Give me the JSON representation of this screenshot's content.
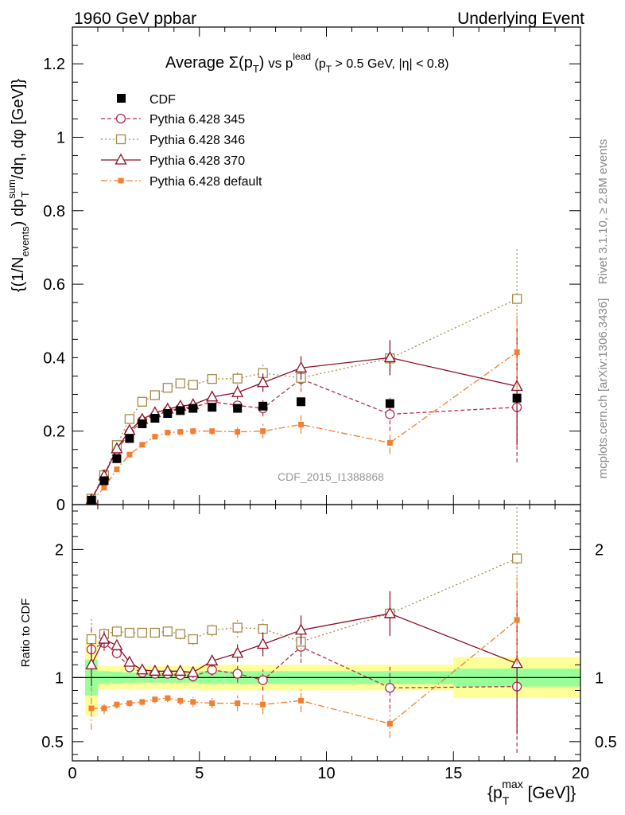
{
  "header": {
    "left": "1960 GeV ppbar",
    "right": "Underlying Event"
  },
  "side_labels": {
    "rivet": "Rivet 3.1.10, ≥ 2.8M events",
    "mcplots": "mcplots.cern.ch [arXiv:1306.3436]"
  },
  "watermark": "CDF_2015_I1388868",
  "legend": {
    "cdf": "CDF",
    "p345": "Pythia 6.428 345",
    "p346": "Pythia 6.428 346",
    "p370": "Pythia 6.428 370",
    "pdef": "Pythia 6.428 default"
  },
  "chart_data": {
    "type": "scatter",
    "title_main": "Average ",
    "title_sigma": "Σ(p",
    "title_sub_t": "T",
    "title_close": ")",
    "title_vs": " vs p",
    "title_lead": "lead",
    "title_rest": " (p",
    "title_rest2": " > 0.5 GeV, |η| < 0.8)",
    "xlabel_pre": "{p",
    "xlabel_sup": "max",
    "xlabel_sub": "T",
    "xlabel_post": " [GeV]}",
    "ylabel_main_a": "{(1/N",
    "ylabel_sub_events": "events",
    "ylabel_main_b": ") dp",
    "ylabel_sup_sum": "sum",
    "ylabel_sub_t": "T",
    "ylabel_main_c": "/dη, dφ [GeV]}",
    "ratio_ylabel": "Ratio to CDF",
    "xlim": [
      0,
      20
    ],
    "ylim_main": [
      0,
      1.3
    ],
    "ylim_ratio": [
      0.35,
      2.35
    ],
    "x_ticks": [
      {
        "v": 0,
        "label": "0"
      },
      {
        "v": 5,
        "label": "5"
      },
      {
        "v": 10,
        "label": "10"
      },
      {
        "v": 15,
        "label": "15"
      },
      {
        "v": 20,
        "label": "20"
      }
    ],
    "y_ticks_main": [
      {
        "v": 0,
        "label": "0"
      },
      {
        "v": 0.2,
        "label": "0.2"
      },
      {
        "v": 0.4,
        "label": "0.4"
      },
      {
        "v": 0.6,
        "label": "0.6"
      },
      {
        "v": 0.8,
        "label": "0.8"
      },
      {
        "v": 1,
        "label": "1"
      },
      {
        "v": 1.2,
        "label": "1.2"
      }
    ],
    "y_ticks_ratio": [
      {
        "v": 0.5,
        "label": "0.5"
      },
      {
        "v": 1,
        "label": "1"
      },
      {
        "v": 2,
        "label": "2"
      }
    ],
    "x": [
      0.75,
      1.25,
      1.75,
      2.25,
      2.75,
      3.25,
      3.75,
      4.25,
      4.75,
      5.5,
      6.5,
      7.5,
      9.0,
      12.5,
      17.5
    ],
    "bins": [
      [
        0.5,
        1.0
      ],
      [
        1.0,
        1.5
      ],
      [
        1.5,
        2.0
      ],
      [
        2.0,
        2.5
      ],
      [
        2.5,
        3.0
      ],
      [
        3.0,
        3.5
      ],
      [
        3.5,
        4.0
      ],
      [
        4.0,
        4.5
      ],
      [
        4.5,
        5.0
      ],
      [
        5.0,
        6.0
      ],
      [
        6.0,
        7.0
      ],
      [
        7.0,
        8.0
      ],
      [
        8.0,
        10.0
      ],
      [
        10.0,
        15.0
      ],
      [
        15.0,
        20.0
      ]
    ],
    "cdf": [
      0.012,
      0.065,
      0.125,
      0.18,
      0.22,
      0.235,
      0.248,
      0.256,
      0.262,
      0.265,
      0.262,
      0.268,
      0.28,
      0.275,
      0.29
    ],
    "band_inner": [
      0.14,
      0.05,
      0.045,
      0.04,
      0.04,
      0.04,
      0.04,
      0.04,
      0.04,
      0.05,
      0.05,
      0.05,
      0.05,
      0.05,
      0.07
    ],
    "band_outer": [
      0.3,
      0.09,
      0.09,
      0.09,
      0.09,
      0.09,
      0.09,
      0.09,
      0.09,
      0.1,
      0.1,
      0.1,
      0.1,
      0.1,
      0.16
    ],
    "series": [
      {
        "key": "p345",
        "color": "#b03050",
        "dash": "5,3",
        "marker": "circle-open",
        "y": [
          0.015,
          0.082,
          0.148,
          0.195,
          0.228,
          0.242,
          0.255,
          0.262,
          0.265,
          0.28,
          0.27,
          0.262,
          0.342,
          0.246,
          0.265
        ],
        "err": [
          0.002,
          0.004,
          0.005,
          0.006,
          0.007,
          0.008,
          0.009,
          0.01,
          0.011,
          0.012,
          0.018,
          0.022,
          0.035,
          0.045,
          0.15
        ],
        "ratio": [
          1.22,
          1.27,
          1.19,
          1.08,
          1.04,
          1.03,
          1.03,
          1.02,
          1.01,
          1.06,
          1.03,
          0.98,
          1.24,
          0.92,
          0.93
        ]
      },
      {
        "key": "p346",
        "color": "#a88a48",
        "dash": "2,3",
        "marker": "square-open",
        "y": [
          0.016,
          0.08,
          0.162,
          0.233,
          0.28,
          0.298,
          0.318,
          0.33,
          0.326,
          0.342,
          0.343,
          0.358,
          0.345,
          0.398,
          0.56
        ],
        "err": [
          0.002,
          0.004,
          0.006,
          0.007,
          0.008,
          0.009,
          0.01,
          0.011,
          0.012,
          0.013,
          0.02,
          0.025,
          0.035,
          0.045,
          0.14
        ],
        "ratio": [
          1.3,
          1.34,
          1.36,
          1.35,
          1.35,
          1.35,
          1.36,
          1.34,
          1.3,
          1.37,
          1.39,
          1.38,
          1.28,
          1.5,
          1.93
        ]
      },
      {
        "key": "p370",
        "color": "#8b1028",
        "dash": "",
        "marker": "triangle-open",
        "y": [
          0.013,
          0.078,
          0.152,
          0.202,
          0.232,
          0.25,
          0.26,
          0.268,
          0.272,
          0.293,
          0.305,
          0.332,
          0.372,
          0.4,
          0.322
        ],
        "err": [
          0.002,
          0.004,
          0.005,
          0.006,
          0.007,
          0.008,
          0.009,
          0.01,
          0.011,
          0.012,
          0.018,
          0.025,
          0.032,
          0.048,
          0.16
        ],
        "ratio": [
          1.1,
          1.3,
          1.25,
          1.12,
          1.06,
          1.05,
          1.05,
          1.05,
          1.04,
          1.13,
          1.19,
          1.26,
          1.37,
          1.5,
          1.11
        ]
      },
      {
        "key": "pdef",
        "color": "#f08030",
        "dash": "8,3,2,3",
        "marker": "square-filled",
        "y": [
          0.009,
          0.046,
          0.096,
          0.136,
          0.163,
          0.185,
          0.196,
          0.198,
          0.2,
          0.2,
          0.198,
          0.2,
          0.218,
          0.168,
          0.415
        ],
        "err": [
          0.002,
          0.003,
          0.004,
          0.005,
          0.006,
          0.007,
          0.008,
          0.009,
          0.01,
          0.011,
          0.016,
          0.02,
          0.025,
          0.03,
          0.1
        ],
        "ratio": [
          0.76,
          0.76,
          0.79,
          0.8,
          0.81,
          0.83,
          0.84,
          0.82,
          0.81,
          0.8,
          0.8,
          0.79,
          0.82,
          0.64,
          1.45
        ]
      }
    ]
  }
}
